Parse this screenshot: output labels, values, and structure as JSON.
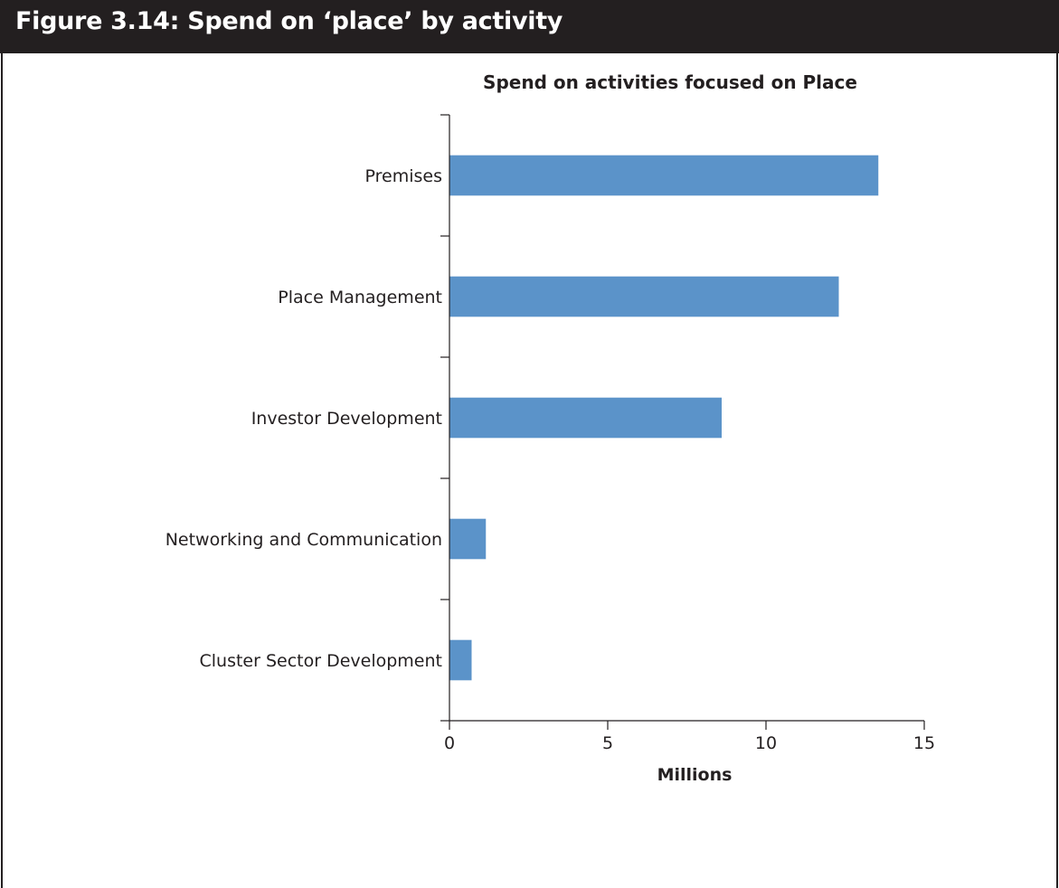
{
  "figure": {
    "title": "Figure 3.14:  Spend on ‘place’ by activity"
  },
  "colors": {
    "header_bg": "#231f20",
    "header_text": "#ffffff",
    "bar": "#5b93c9",
    "axis": "#231f20"
  },
  "chart_data": {
    "type": "bar",
    "orientation": "horizontal",
    "title": "Spend on activities focused on Place",
    "xlabel": "Millions",
    "ylabel": "",
    "categories": [
      "Premises",
      "Place Management",
      "Investor Development",
      "Networking and Communication",
      "Cluster Sector Development"
    ],
    "values": [
      13.55,
      12.3,
      8.6,
      1.15,
      0.7
    ],
    "xlim": [
      0,
      15
    ],
    "xticks": [
      0,
      5,
      10,
      15
    ],
    "grid": false,
    "legend": "none"
  }
}
